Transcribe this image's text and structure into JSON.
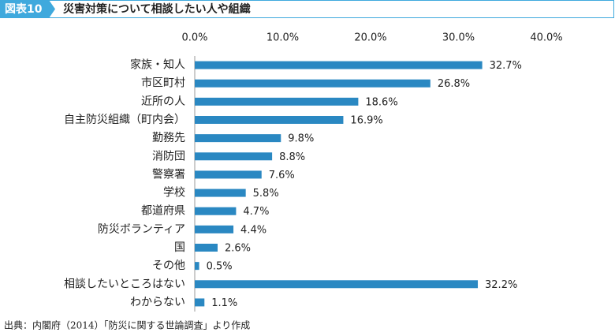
{
  "chart_data": {
    "type": "bar",
    "orientation": "horizontal",
    "figure_label": "図表10",
    "title": "災害対策について相談したい人や組織",
    "categories": [
      "家族・知人",
      "市区町村",
      "近所の人",
      "自主防災組織（町内会）",
      "勤務先",
      "消防団",
      "警察署",
      "学校",
      "都道府県",
      "防災ボランティア",
      "国",
      "その他",
      "相談したいところはない",
      "わからない"
    ],
    "values": [
      32.7,
      26.8,
      18.6,
      16.9,
      9.8,
      8.8,
      7.6,
      5.8,
      4.7,
      4.4,
      2.6,
      0.5,
      32.2,
      1.1
    ],
    "value_labels": [
      "32.7%",
      "26.8%",
      "18.6%",
      "16.9%",
      "9.8%",
      "8.8%",
      "7.6%",
      "5.8%",
      "4.7%",
      "4.4%",
      "2.6%",
      "0.5%",
      "32.2%",
      "1.1%"
    ],
    "color": "#2a88c2",
    "xlim": [
      0,
      40
    ],
    "xticks": [
      {
        "value": 0,
        "label": "0.0%"
      },
      {
        "value": 10,
        "label": "10.0%"
      },
      {
        "value": 20,
        "label": "20.0%"
      },
      {
        "value": 30,
        "label": "30.0%"
      },
      {
        "value": 40,
        "label": "40.0%"
      }
    ],
    "grid": false,
    "source": "出典：内閣府（2014）「防災に関する世論調査」より作成"
  }
}
